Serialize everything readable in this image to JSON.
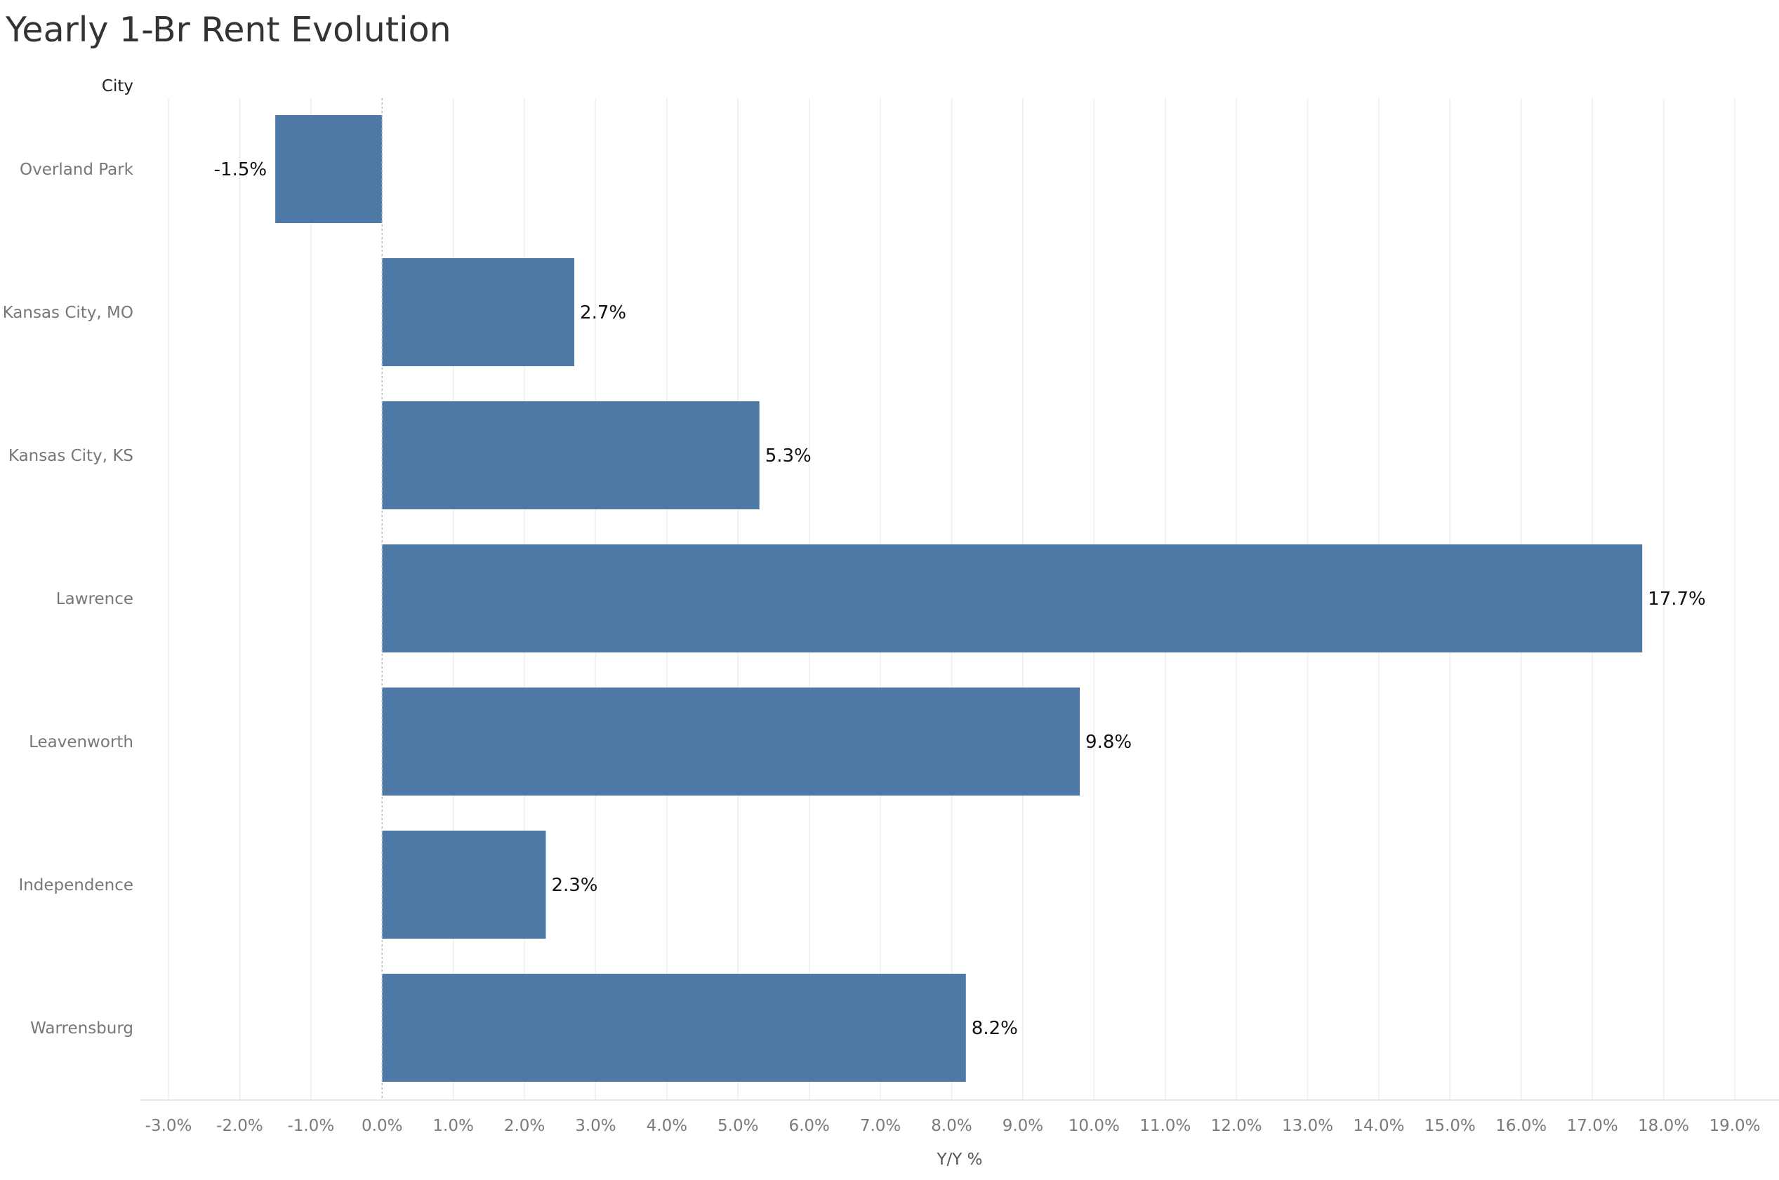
{
  "chart_data": {
    "type": "bar",
    "orientation": "horizontal",
    "title": "Yearly 1-Br Rent Evolution",
    "row_header": "City",
    "xlabel": "Y/Y %",
    "categories": [
      "Overland Park",
      "Kansas City, MO",
      "Kansas City, KS",
      "Lawrence",
      "Leavenworth",
      "Independence",
      "Warrensburg"
    ],
    "values": [
      -1.5,
      2.7,
      5.3,
      17.7,
      9.8,
      2.3,
      8.2
    ],
    "value_labels": [
      "-1.5%",
      "2.7%",
      "5.3%",
      "17.7%",
      "9.8%",
      "2.3%",
      "8.2%"
    ],
    "xlim": [
      -3.0,
      19.0
    ],
    "xticks": [
      -3,
      -2,
      -1,
      0,
      1,
      2,
      3,
      4,
      5,
      6,
      7,
      8,
      9,
      10,
      11,
      12,
      13,
      14,
      15,
      16,
      17,
      18,
      19
    ],
    "xtick_labels": [
      "-3.0%",
      "-2.0%",
      "-1.0%",
      "0.0%",
      "1.0%",
      "2.0%",
      "3.0%",
      "4.0%",
      "5.0%",
      "6.0%",
      "7.0%",
      "8.0%",
      "9.0%",
      "10.0%",
      "11.0%",
      "12.0%",
      "13.0%",
      "14.0%",
      "15.0%",
      "16.0%",
      "17.0%",
      "18.0%",
      "19.0%"
    ],
    "bar_color": "#4e79a7",
    "grid": "vertical"
  }
}
